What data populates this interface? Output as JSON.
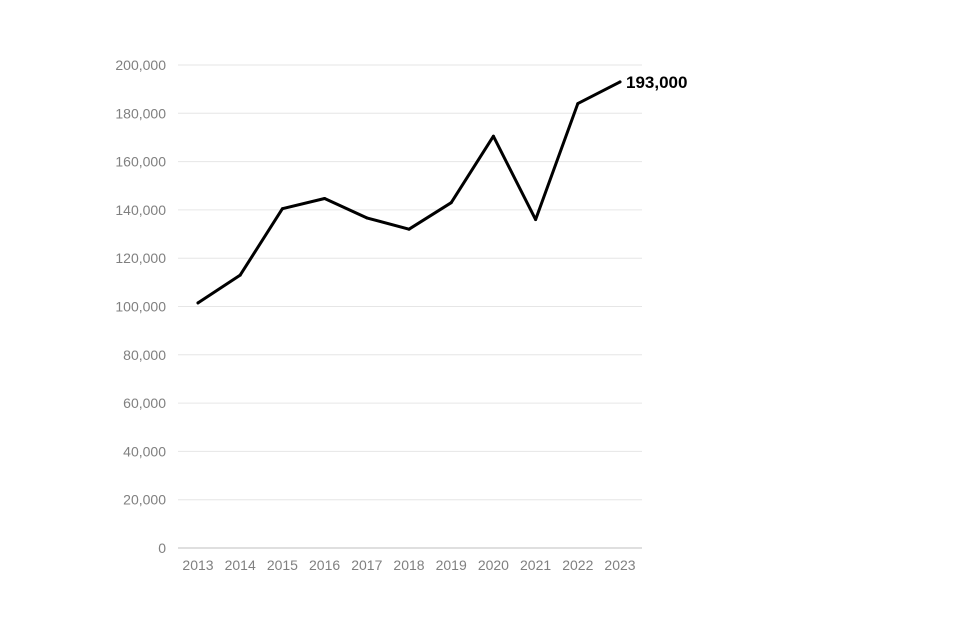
{
  "chart_data": {
    "type": "line",
    "title": "",
    "xlabel": "",
    "ylabel": "",
    "categories": [
      "2013",
      "2014",
      "2015",
      "2016",
      "2017",
      "2018",
      "2019",
      "2020",
      "2021",
      "2022",
      "2023"
    ],
    "series": [
      {
        "values": [
          101500,
          113000,
          140500,
          144700,
          136700,
          132000,
          143000,
          170500,
          136000,
          184000,
          193000
        ],
        "color": "#000000"
      }
    ],
    "yticks": [
      0,
      20000,
      40000,
      60000,
      80000,
      100000,
      120000,
      140000,
      160000,
      180000,
      200000
    ],
    "ytick_labels": [
      "0",
      "20,000",
      "40,000",
      "60,000",
      "80,000",
      "100,000",
      "120,000",
      "140,000",
      "160,000",
      "180,000",
      "200,000"
    ],
    "ylim": [
      0,
      200000
    ],
    "grid": true,
    "legend": "none",
    "annotation": {
      "text": "193,000",
      "target": "last-point"
    }
  }
}
